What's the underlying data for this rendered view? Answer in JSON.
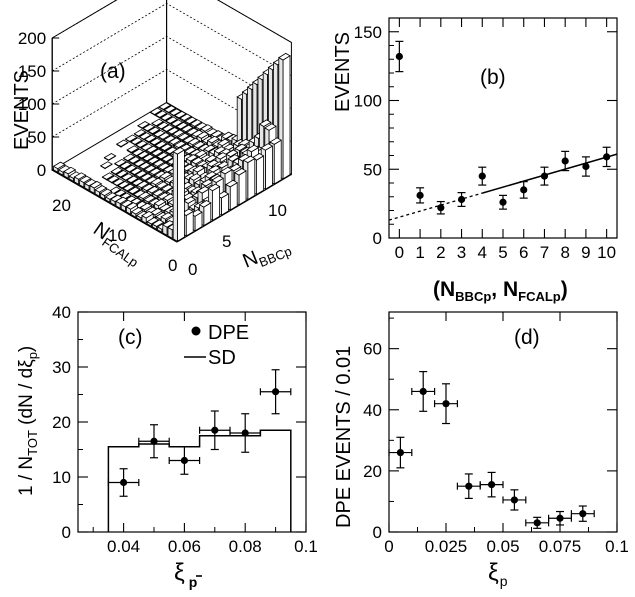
{
  "chart_data": [
    {
      "panel": "(a)",
      "type": "heatmap",
      "ylabel": "EVENTS",
      "x_axis_label": "N",
      "x_axis_sub": "BBCp",
      "y_axis_label": "N",
      "y_axis_sub": "FCALp",
      "zlim": [
        0,
        200
      ],
      "z_ticks": [
        "0",
        "50",
        "100",
        "150",
        "200"
      ],
      "nbbc_ticks": [
        "0",
        "5",
        "10"
      ],
      "nfcal_ticks": [
        "0",
        "10",
        "20"
      ],
      "note": "3D lego histogram of EVENTS vs N_BBCp and N_FCALp"
    },
    {
      "panel": "(b)",
      "type": "scatter",
      "ylabel": "EVENTS",
      "xlabel_main": "(N",
      "xlabel_sub1": "BBCp",
      "xlabel_mid": ", N",
      "xlabel_sub2": "FCALp",
      "xlabel_end": ")",
      "xlim": [
        -0.5,
        10.5
      ],
      "ylim": [
        0,
        160
      ],
      "x_ticks": [
        "0",
        "1",
        "2",
        "3",
        "4",
        "5",
        "6",
        "7",
        "8",
        "9",
        "10"
      ],
      "y_ticks": [
        "0",
        "50",
        "100",
        "150"
      ],
      "x": [
        0,
        1,
        2,
        3,
        4,
        5,
        6,
        7,
        8,
        9,
        10
      ],
      "y": [
        132,
        31,
        22,
        28,
        45,
        26,
        35,
        45,
        56,
        52,
        59
      ],
      "yerr": [
        11,
        5.5,
        4.5,
        5,
        6.5,
        5,
        6,
        6.5,
        7,
        7,
        7
      ],
      "fit_line": {
        "x0": -0.5,
        "y0": 13,
        "x1": 10.5,
        "y1": 61,
        "dashed_until": 4
      }
    },
    {
      "panel": "(c)",
      "type": "scatter",
      "ylabel_main": "1 / N",
      "ylabel_sub1": "TOT",
      "ylabel_mid": " (dN / dξ",
      "ylabel_sub2": "p",
      "ylabel_end": ")",
      "xlabel": "ξ",
      "xlabel_sub": "p",
      "xlim": [
        0.025,
        0.1
      ],
      "ylim": [
        0,
        40
      ],
      "x_ticks": [
        "0.04",
        "0.06",
        "0.08",
        "0.1"
      ],
      "y_ticks": [
        "0",
        "10",
        "20",
        "30",
        "40"
      ],
      "legend": [
        {
          "label": "DPE",
          "marker": "dot"
        },
        {
          "label": "SD",
          "marker": "line"
        }
      ],
      "series": [
        {
          "name": "DPE",
          "x": [
            0.04,
            0.05,
            0.06,
            0.07,
            0.08,
            0.09
          ],
          "y": [
            9,
            16.5,
            13,
            18.5,
            18,
            25.5
          ],
          "yerr": [
            2.5,
            3,
            2.5,
            3.5,
            3.5,
            4
          ],
          "xerr": 0.005
        },
        {
          "name": "SD",
          "type": "step",
          "edges": [
            0.035,
            0.045,
            0.055,
            0.065,
            0.075,
            0.085,
            0.095
          ],
          "values": [
            15.5,
            16,
            15.5,
            17.5,
            17.5,
            18.5
          ]
        }
      ]
    },
    {
      "panel": "(d)",
      "type": "scatter",
      "ylabel": "DPE EVENTS / 0.01",
      "xlabel": "ξ",
      "xlabel_sub": "p",
      "xlim": [
        0,
        0.1
      ],
      "ylim": [
        0,
        72
      ],
      "x_ticks": [
        "0",
        "0.025",
        "0.05",
        "0.075",
        "0.1"
      ],
      "y_ticks": [
        "0",
        "20",
        "40",
        "60"
      ],
      "x": [
        0.005,
        0.015,
        0.025,
        0.035,
        0.045,
        0.055,
        0.065,
        0.075,
        0.085
      ],
      "y": [
        26,
        46,
        42,
        15,
        15.5,
        10.5,
        3,
        4.5,
        6
      ],
      "yerr": [
        5,
        6.5,
        6.5,
        4,
        4,
        3.3,
        1.8,
        2.2,
        2.5
      ],
      "xerr": 0.005
    }
  ]
}
